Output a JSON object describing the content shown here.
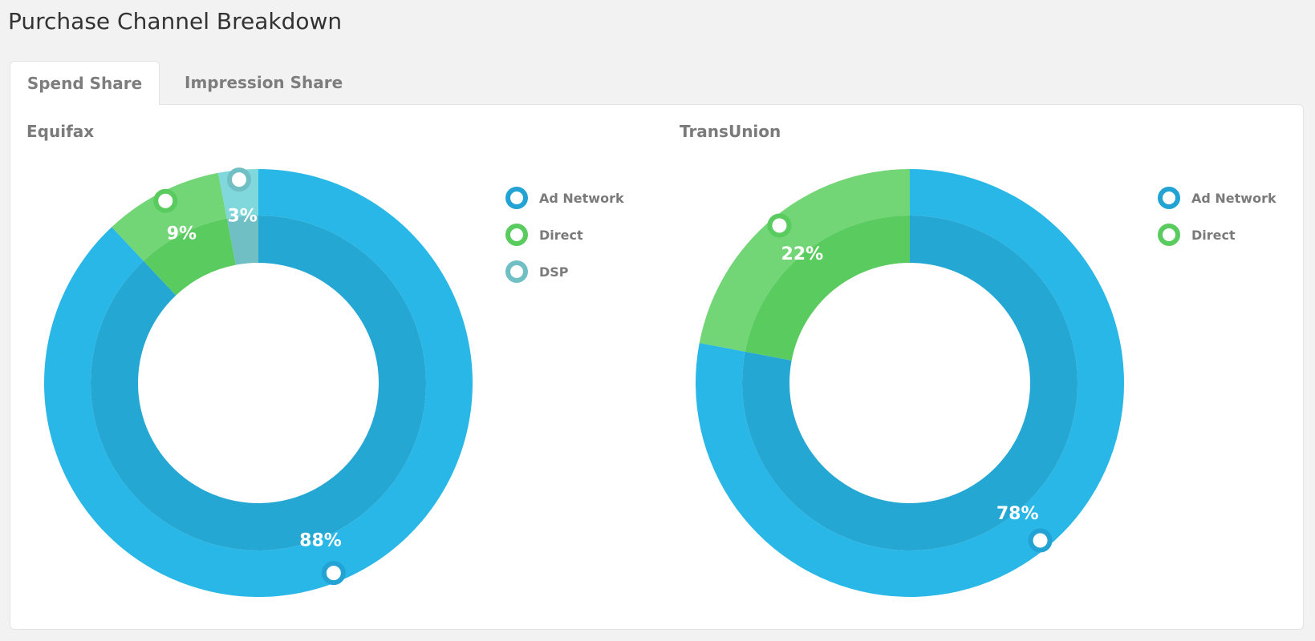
{
  "page": {
    "title": "Purchase Channel Breakdown"
  },
  "tabs": [
    {
      "label": "Spend Share",
      "active": true
    },
    {
      "label": "Impression Share",
      "active": false
    }
  ],
  "colors": {
    "Ad Network": {
      "outer": "#28b7e6",
      "inner": "#25a7d3",
      "marker": "#22a3d3"
    },
    "Direct": {
      "outer": "#72d677",
      "inner": "#5acb5e",
      "marker": "#5acb5e"
    },
    "DSP": {
      "outer": "#80d8dc",
      "inner": "#6fbfc4",
      "marker": "#6fbfc4"
    }
  },
  "chart_data": [
    {
      "type": "pie",
      "title": "Equifax",
      "categories": [
        "Ad Network",
        "Direct",
        "DSP"
      ],
      "values": [
        88,
        9,
        3
      ],
      "labels": [
        "88%",
        "9%",
        "3%"
      ],
      "legend": [
        "Ad Network",
        "Direct",
        "DSP"
      ],
      "legend_position": "right"
    },
    {
      "type": "pie",
      "title": "TransUnion",
      "categories": [
        "Ad Network",
        "Direct"
      ],
      "values": [
        78,
        22
      ],
      "labels": [
        "78%",
        "22%"
      ],
      "legend": [
        "Ad Network",
        "Direct"
      ],
      "legend_position": "right"
    }
  ]
}
